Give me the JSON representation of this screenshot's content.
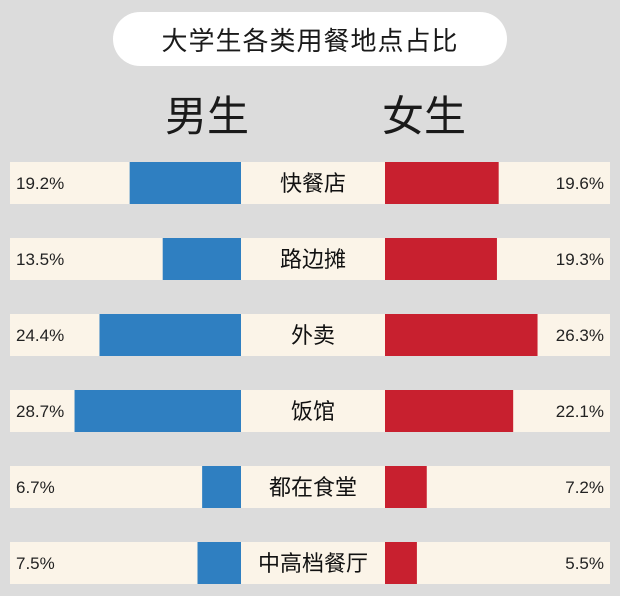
{
  "chart_data": {
    "type": "bar",
    "title": "大学生各类用餐地点占比",
    "categories": [
      "快餐店",
      "路边摊",
      "外卖",
      "饭馆",
      "都在食堂",
      "中高档餐厅"
    ],
    "series": [
      {
        "name": "男生",
        "values": [
          19.2,
          13.5,
          24.4,
          28.7,
          6.7,
          7.5
        ],
        "labels": [
          "19.2%",
          "13.5%",
          "24.4%",
          "28.7%",
          "6.7%",
          "7.5%"
        ],
        "color": "#2f7fc1"
      },
      {
        "name": "女生",
        "values": [
          19.6,
          19.3,
          26.3,
          22.1,
          7.2,
          5.5
        ],
        "labels": [
          "19.6%",
          "19.3%",
          "26.3%",
          "22.1%",
          "7.2%",
          "5.5%"
        ],
        "color": "#c8202f"
      }
    ],
    "unit": "%",
    "orientation": "horizontal-diverging",
    "grid": false,
    "legend": "top"
  },
  "colors": {
    "background": "#dcdcdc",
    "row": "#fbf4e8",
    "male": "#2f7fc1",
    "female": "#c8202f"
  }
}
